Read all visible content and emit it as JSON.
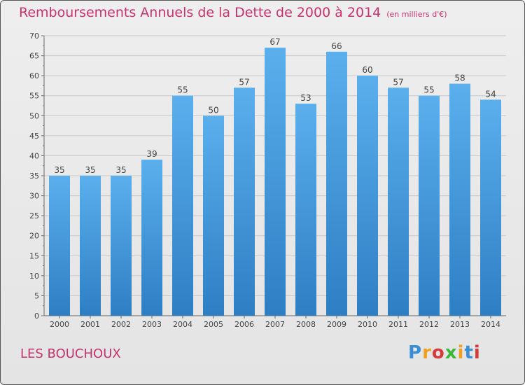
{
  "header": {
    "title": "Remboursements Annuels de la Dette de 2000 à 2014",
    "unit": "(en milliers d'€)"
  },
  "footer": {
    "locality": "LES BOUCHOUX",
    "logo_text": "Proxiti",
    "logo_colors": [
      "#3a8ed8",
      "#f0a020",
      "#d83a3a",
      "#3ab83a",
      "#f0a020",
      "#3a8ed8",
      "#d83a3a"
    ]
  },
  "chart_data": {
    "type": "bar",
    "title": "Remboursements Annuels de la Dette de 2000 à 2014",
    "subtitle": "(en milliers d'€)",
    "xlabel": "",
    "ylabel": "",
    "categories": [
      "2000",
      "2001",
      "2002",
      "2003",
      "2004",
      "2005",
      "2006",
      "2007",
      "2008",
      "2009",
      "2010",
      "2011",
      "2012",
      "2013",
      "2014"
    ],
    "values": [
      35,
      35,
      35,
      39,
      55,
      50,
      57,
      67,
      53,
      66,
      60,
      57,
      55,
      58,
      54
    ],
    "ylim": [
      0,
      70
    ],
    "yticks": [
      0,
      5,
      10,
      15,
      20,
      25,
      30,
      35,
      40,
      45,
      50,
      55,
      60,
      65,
      70
    ],
    "grid": true,
    "bar_color": "#4a9fe0",
    "grid_color": "#c8c8c8"
  }
}
